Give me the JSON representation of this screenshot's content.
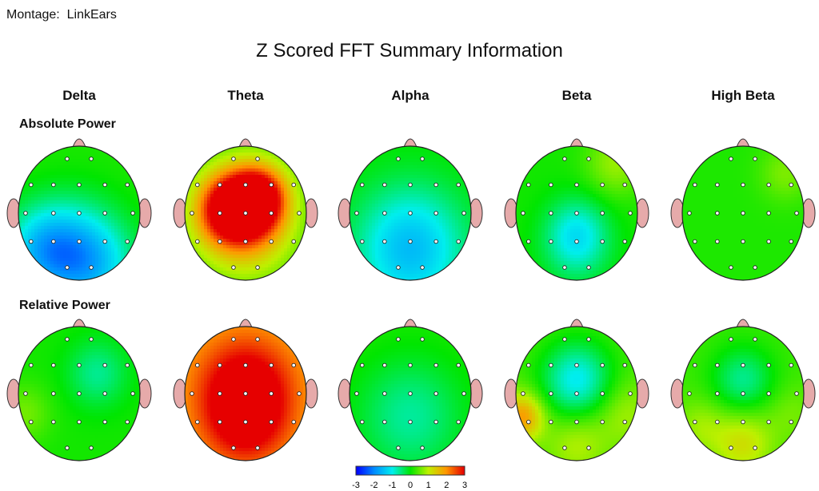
{
  "montage": {
    "label": "Montage:",
    "value": "LinkEars"
  },
  "title": "Z Scored FFT Summary Information",
  "bands": [
    "Delta",
    "Theta",
    "Alpha",
    "Beta",
    "High Beta"
  ],
  "rows": [
    "Absolute Power",
    "Relative Power"
  ],
  "chart_data": {
    "type": "heatmap",
    "colorbar": {
      "range": [
        -3,
        3
      ],
      "ticks": [
        "-3",
        "-2",
        "-1",
        "0",
        "1",
        "2",
        "3"
      ]
    },
    "maps": [
      [
        {
          "base": 0.15,
          "blobs": [
            [
              -0.6,
              0.55,
              -1.3,
              0.45
            ],
            [
              0.2,
              0.8,
              -1.2,
              0.5
            ],
            [
              -0.1,
              0.5,
              -0.8,
              0.55
            ]
          ]
        },
        {
          "base": 0.3,
          "blobs": [
            [
              0.0,
              -0.1,
              2.5,
              0.4
            ],
            [
              -0.35,
              -0.05,
              1.7,
              0.35
            ],
            [
              0.25,
              -0.25,
              1.8,
              0.3
            ],
            [
              0.0,
              0.2,
              1.1,
              0.55
            ]
          ]
        },
        {
          "base": 0.05,
          "blobs": [
            [
              0.0,
              0.65,
              -0.9,
              0.65
            ],
            [
              0.0,
              0.4,
              -0.7,
              0.6
            ]
          ]
        },
        {
          "base": 0.1,
          "blobs": [
            [
              0.0,
              0.25,
              -0.8,
              0.35
            ],
            [
              0.0,
              0.55,
              -0.6,
              0.4
            ],
            [
              0.65,
              -0.75,
              0.7,
              0.35
            ]
          ]
        },
        {
          "base": 0.15,
          "blobs": [
            [
              0.7,
              -0.6,
              0.5,
              0.3
            ]
          ]
        }
      ],
      [
        {
          "base": 0.1,
          "blobs": [
            [
              0.3,
              -0.3,
              -0.7,
              0.35
            ],
            [
              -0.9,
              0.3,
              0.5,
              0.3
            ]
          ]
        },
        {
          "base": 1.7,
          "blobs": [
            [
              0.0,
              -0.05,
              1.8,
              0.55
            ],
            [
              0.0,
              0.45,
              1.0,
              0.45
            ]
          ]
        },
        {
          "base": 0.15,
          "blobs": [
            [
              0.0,
              0.35,
              -0.8,
              0.6
            ]
          ]
        },
        {
          "base": 0.35,
          "blobs": [
            [
              0.0,
              -0.2,
              -1.4,
              0.4
            ],
            [
              -0.9,
              0.35,
              1.6,
              0.25
            ],
            [
              0.0,
              0.75,
              0.6,
              0.35
            ],
            [
              0.8,
              0.3,
              0.5,
              0.35
            ]
          ]
        },
        {
          "base": 0.3,
          "blobs": [
            [
              0.0,
              -0.2,
              -0.9,
              0.35
            ],
            [
              0.0,
              0.75,
              0.9,
              0.35
            ],
            [
              -0.7,
              0.5,
              0.5,
              0.3
            ],
            [
              0.8,
              0.3,
              0.3,
              0.3
            ]
          ]
        }
      ]
    ]
  }
}
